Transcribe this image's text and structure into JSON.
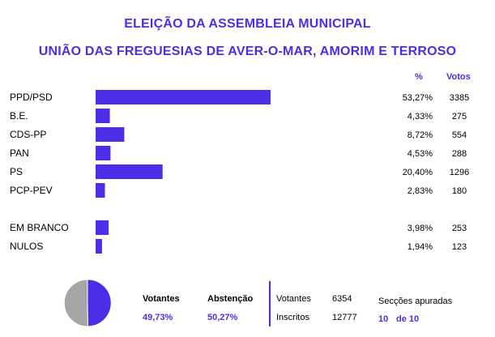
{
  "header": {
    "title": "ELEIÇÃO DA ASSEMBLEIA MUNICIPAL",
    "subtitle": "UNIÃO DAS FREGUESIAS DE AVER-O-MAR, AMORIM E TERROSO",
    "col_pct": "%",
    "col_votes": "Votos"
  },
  "chart_data": {
    "type": "bar",
    "orientation": "horizontal",
    "title": "ELEIÇÃO DA ASSEMBLEIA MUNICIPAL",
    "subtitle": "UNIÃO DAS FREGUESIAS DE AVER-O-MAR, AMORIM E TERROSO",
    "categories": [
      "PPD/PSD",
      "B.E.",
      "CDS-PP",
      "PAN",
      "PS",
      "PCP-PEV",
      "EM BRANCO",
      "NULOS"
    ],
    "values": [
      53.27,
      4.33,
      8.72,
      4.53,
      20.4,
      2.83,
      3.98,
      1.94
    ],
    "pct_labels": [
      "53,27%",
      "4,33%",
      "8,72%",
      "4,53%",
      "20,40%",
      "2,83%",
      "3,98%",
      "1,94%"
    ],
    "votes_labels": [
      "3385",
      "275",
      "554",
      "288",
      "1296",
      "180",
      "253",
      "123"
    ],
    "bar_color": "#4b2ee6",
    "xlim": [
      0,
      53.27
    ],
    "grid": false,
    "legend": "none"
  },
  "summary": {
    "votantes_label": "Votantes",
    "votantes_pct": "49,73%",
    "abstencao_label": "Abstenção",
    "abstencao_pct": "50,27%",
    "pie": {
      "votantes_fraction": 0.4973,
      "votantes_color": "#4b2ee6",
      "abstencao_color": "#a6a6a6"
    },
    "votantes_count_label": "Votantes",
    "votantes_count": "6354",
    "inscritos_label": "Inscritos",
    "inscritos_count": "12777",
    "seccoes_label": "Secções apuradas",
    "seccoes_done": "10",
    "seccoes_total": "de 10"
  }
}
